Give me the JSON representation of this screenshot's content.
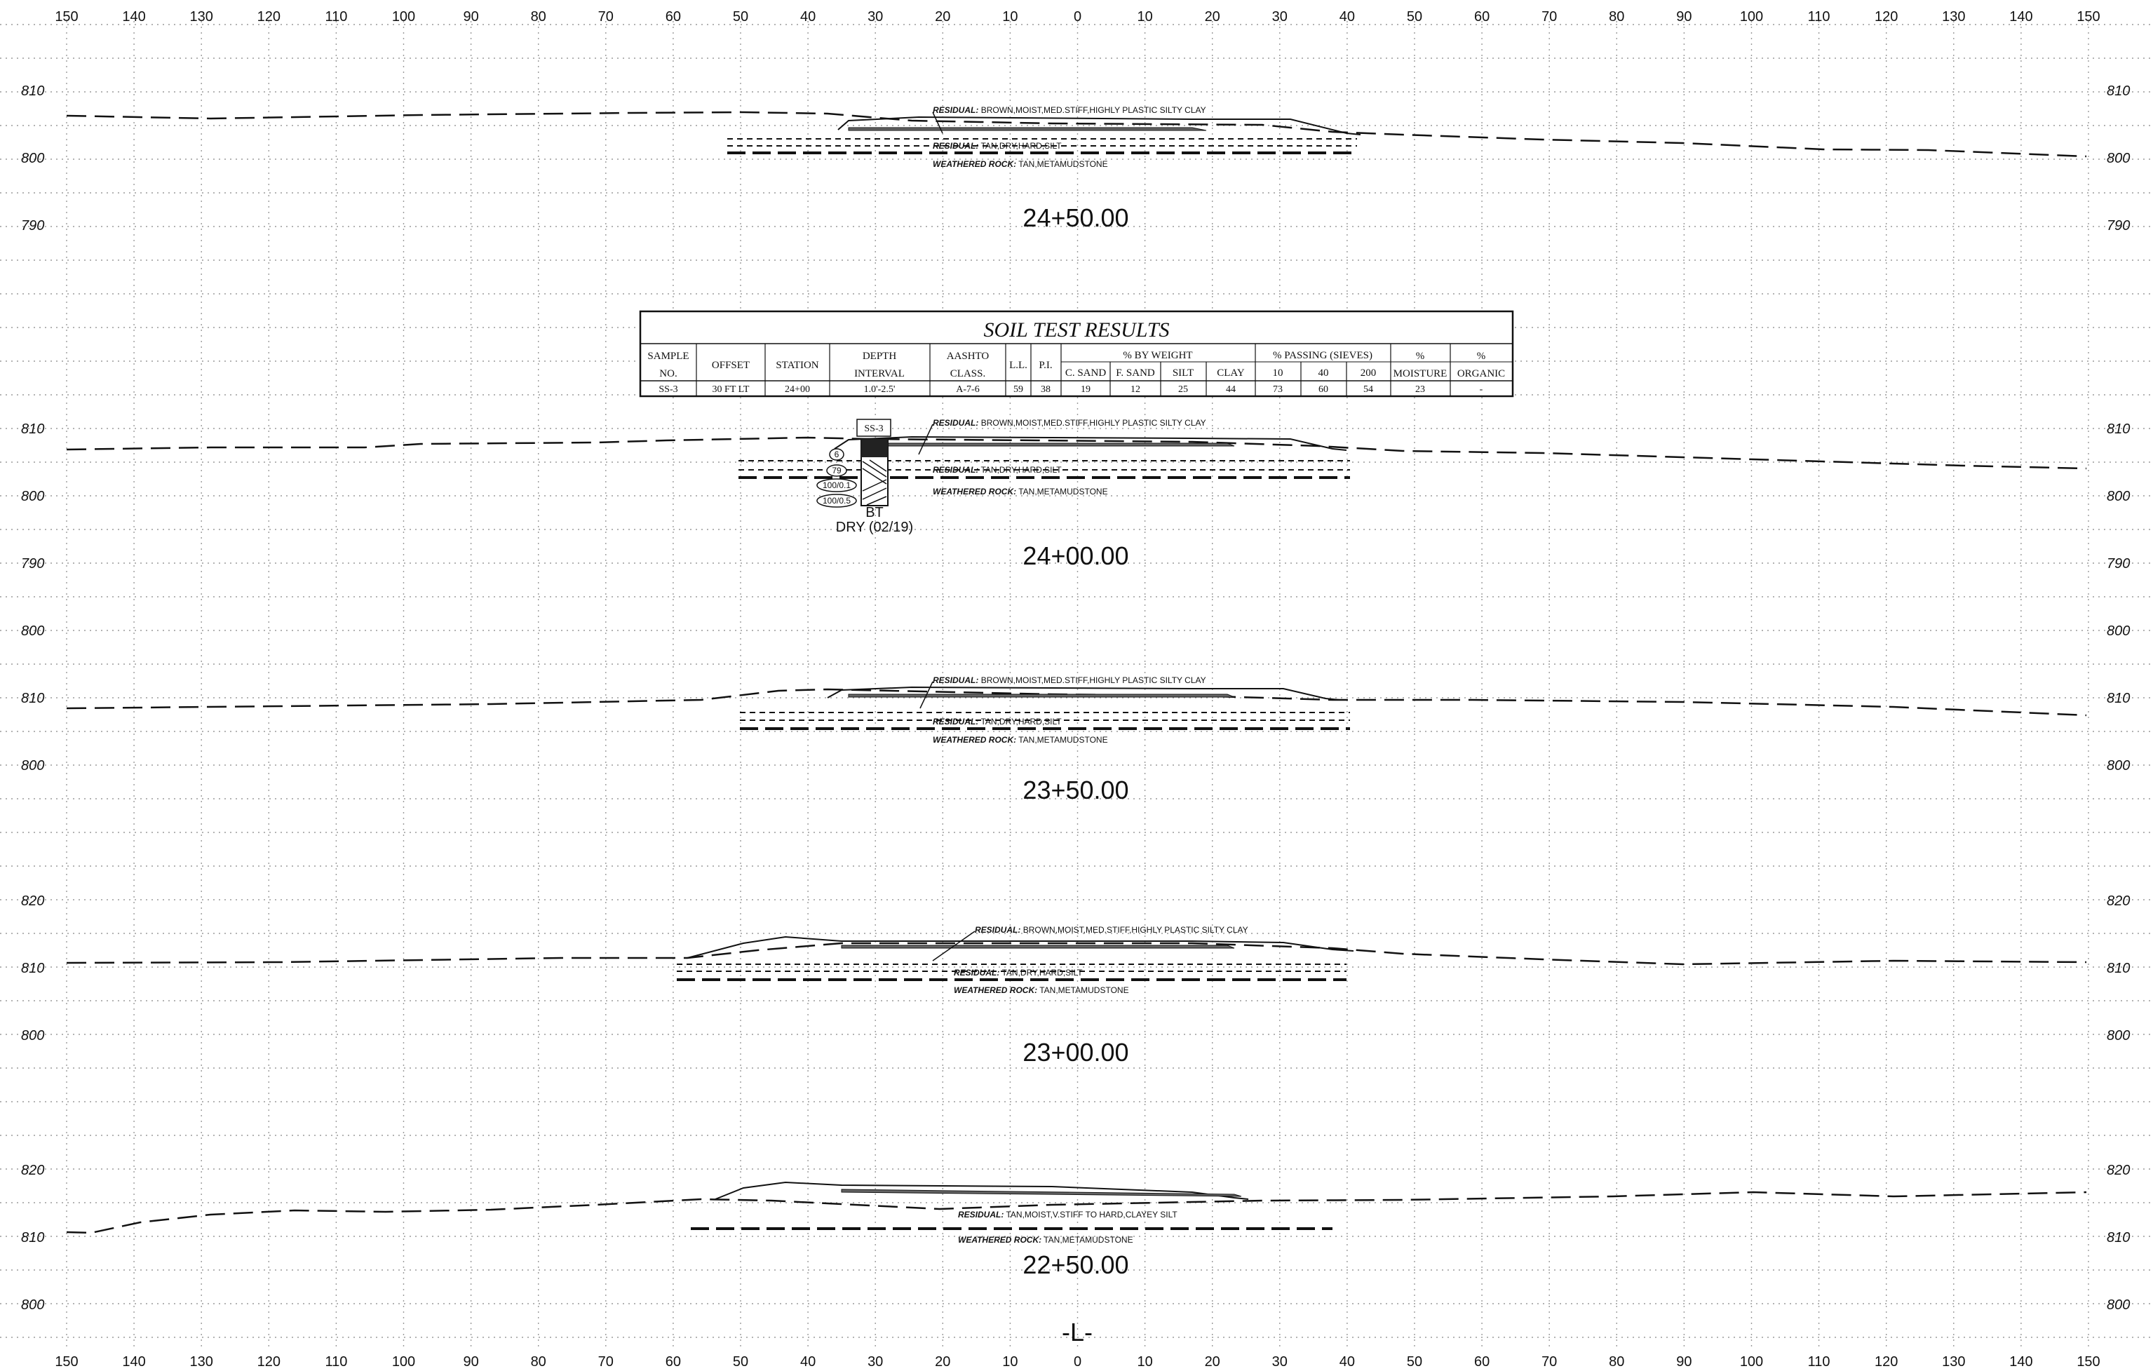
{
  "axis": {
    "top_ticks": [
      "150",
      "140",
      "130",
      "120",
      "110",
      "100",
      "90",
      "80",
      "70",
      "60",
      "50",
      "40",
      "30",
      "20",
      "10",
      "0",
      "10",
      "20",
      "30",
      "40",
      "50",
      "60",
      "70",
      "80",
      "90",
      "100",
      "110",
      "120",
      "130",
      "140",
      "150"
    ],
    "bottom_ticks": [
      "150",
      "140",
      "130",
      "120",
      "110",
      "100",
      "90",
      "80",
      "70",
      "60",
      "50",
      "40",
      "30",
      "20",
      "10",
      "0",
      "10",
      "20",
      "30",
      "40",
      "50",
      "60",
      "70",
      "80",
      "90",
      "100",
      "110",
      "120",
      "130",
      "140",
      "150"
    ]
  },
  "sections": [
    {
      "station": "24+50.00",
      "elevations": [
        "810",
        "800",
        "790"
      ],
      "layers": [
        {
          "prefix": "RESIDUAL:",
          "text": "BROWN,MOIST,MED.STIFF,HIGHLY PLASTIC SILTY CLAY"
        },
        {
          "prefix": "RESIDUAL:",
          "text": "TAN,DRY,HARD,SILT"
        },
        {
          "prefix": "WEATHERED ROCK:",
          "text": "TAN,METAMUDSTONE"
        }
      ]
    },
    {
      "station": "24+00.00",
      "elevations": [
        "810",
        "800",
        "790"
      ],
      "layers": [
        {
          "prefix": "RESIDUAL:",
          "text": "BROWN,MOIST,MED.STIFF,HIGHLY PLASTIC SILTY CLAY"
        },
        {
          "prefix": "RESIDUAL:",
          "text": "TAN,DRY,HARD,SILT"
        },
        {
          "prefix": "WEATHERED ROCK:",
          "text": "TAN,METAMUDSTONE"
        }
      ],
      "boring": {
        "sample_tag": "SS-3",
        "blow_counts": [
          "6",
          "79",
          "100/0.1",
          "100/0.5"
        ],
        "termination": "BT",
        "water": "DRY (02/19)"
      }
    },
    {
      "station": "23+50.00",
      "elevations": [
        "800",
        "810",
        "800"
      ],
      "layers": [
        {
          "prefix": "RESIDUAL:",
          "text": "BROWN,MOIST,MED.STIFF,HIGHLY PLASTIC SILTY CLAY"
        },
        {
          "prefix": "RESIDUAL:",
          "text": "TAN,DRY,HARD,SILT"
        },
        {
          "prefix": "WEATHERED ROCK:",
          "text": "TAN,METAMUDSTONE"
        }
      ]
    },
    {
      "station": "23+00.00",
      "elevations": [
        "820",
        "810",
        "800"
      ],
      "layers": [
        {
          "prefix": "RESIDUAL:",
          "text": "BROWN,MOIST,MED.STIFF,HIGHLY PLASTIC SILTY CLAY"
        },
        {
          "prefix": "RESIDUAL:",
          "text": "TAN,DRY,HARD,SILT"
        },
        {
          "prefix": "WEATHERED ROCK:",
          "text": "TAN,METAMUDSTONE"
        }
      ]
    },
    {
      "station": "22+50.00",
      "elevations": [
        "820",
        "810",
        "800"
      ],
      "layers": [
        {
          "prefix": "RESIDUAL:",
          "text": "TAN,MOIST,V.STIFF TO HARD,CLAYEY SILT"
        },
        {
          "prefix": "WEATHERED ROCK:",
          "text": "TAN,METAMUDSTONE"
        }
      ]
    }
  ],
  "soil_table": {
    "title": "SOIL  TEST  RESULTS",
    "headers": {
      "sample_no_1": "SAMPLE",
      "sample_no_2": "NO.",
      "offset": "OFFSET",
      "station": "STATION",
      "depth_1": "DEPTH",
      "depth_2": "INTERVAL",
      "aashto_1": "AASHTO",
      "aashto_2": "CLASS.",
      "ll": "L.L.",
      "pi": "P.I.",
      "by_weight": "%  BY  WEIGHT",
      "c_sand": "C. SAND",
      "f_sand": "F. SAND",
      "silt": "SILT",
      "clay": "CLAY",
      "passing": "%  PASSING  (SIEVES)",
      "sieve_10": "10",
      "sieve_40": "40",
      "sieve_200": "200",
      "moisture_1": "%",
      "moisture_2": "MOISTURE",
      "organic_1": "%",
      "organic_2": "ORGANIC"
    },
    "row": {
      "sample_no": "SS-3",
      "offset": "30 FT  LT",
      "station": "24+00",
      "depth": "1.0'-2.5'",
      "aashto": "A-7-6",
      "ll": "59",
      "pi": "38",
      "c_sand": "19",
      "f_sand": "12",
      "silt": "25",
      "clay": "44",
      "p10": "73",
      "p40": "60",
      "p200": "54",
      "moisture": "23",
      "organic": "-"
    }
  },
  "centerline_label": "-L-"
}
